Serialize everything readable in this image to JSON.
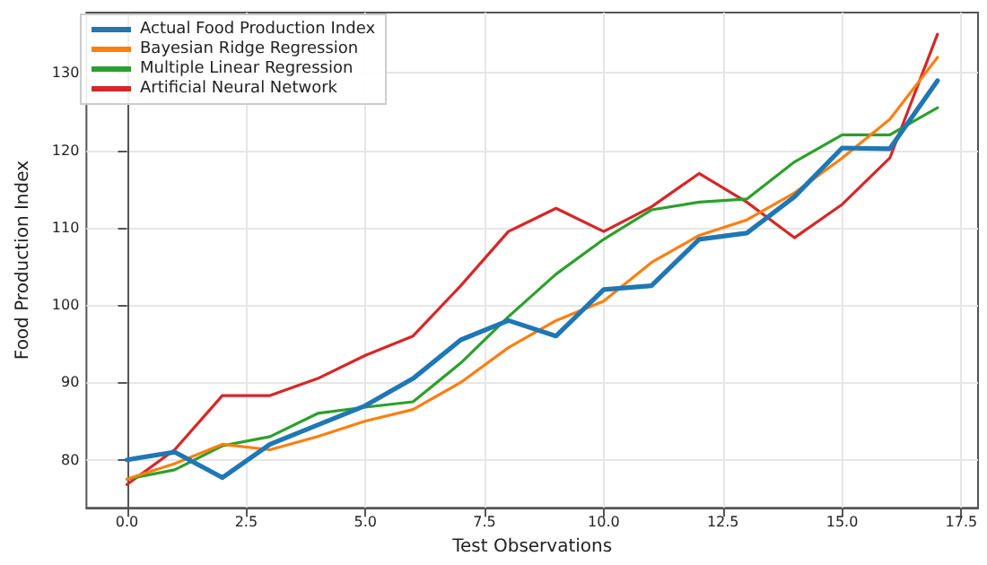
{
  "chart_data": {
    "type": "line",
    "xlabel": "Test Observations",
    "ylabel": "Food Production Index",
    "x": [
      0,
      1,
      2,
      3,
      4,
      5,
      6,
      7,
      8,
      9,
      10,
      11,
      12,
      13,
      14,
      15,
      16,
      17
    ],
    "series": [
      {
        "name": "Actual Food Production Index",
        "color": "#1f77b4",
        "values": [
          80,
          81,
          77.7,
          82,
          84.5,
          87,
          90.5,
          95.5,
          98,
          96,
          102,
          102.5,
          108.5,
          109.3,
          114,
          120.3,
          120.2,
          129
        ]
      },
      {
        "name": "Bayesian Ridge Regression",
        "color": "#ff7f0e",
        "values": [
          77.5,
          79.5,
          82,
          81.3,
          83,
          85,
          86.5,
          90,
          94.5,
          98,
          100.5,
          105.5,
          109,
          111,
          114.5,
          119,
          124,
          132
        ]
      },
      {
        "name": "Multiple Linear Regression",
        "color": "#2ca02c",
        "values": [
          77.5,
          78.7,
          81.8,
          83,
          86,
          86.8,
          87.5,
          92.5,
          98.5,
          104,
          108.5,
          112.3,
          113.3,
          113.7,
          118.5,
          122,
          122,
          125.5
        ]
      },
      {
        "name": "Artificial Neural Network",
        "color": "#d62728",
        "values": [
          76.8,
          81.3,
          88.3,
          88.3,
          90.5,
          93.5,
          96,
          102.5,
          109.5,
          112.5,
          109.5,
          112.7,
          117,
          113.3,
          108.7,
          113,
          119,
          135
        ]
      }
    ],
    "xlim": [
      -0.85,
      17.85
    ],
    "xticks": [
      {
        "value": 0,
        "label": "0.0"
      },
      {
        "value": 2.5,
        "label": "2.5"
      },
      {
        "value": 5,
        "label": "5.0"
      },
      {
        "value": 7.5,
        "label": "7.5"
      },
      {
        "value": 10,
        "label": "10.0"
      },
      {
        "value": 12.5,
        "label": "12.5"
      },
      {
        "value": 15,
        "label": "15.0"
      },
      {
        "value": 17.5,
        "label": "17.5"
      }
    ],
    "ylim": [
      73.8,
      137.8
    ],
    "yticks": [
      80,
      90,
      100,
      110,
      120,
      130
    ],
    "grid": true,
    "legend": "top left",
    "marker": "none",
    "line_style": "solid"
  }
}
